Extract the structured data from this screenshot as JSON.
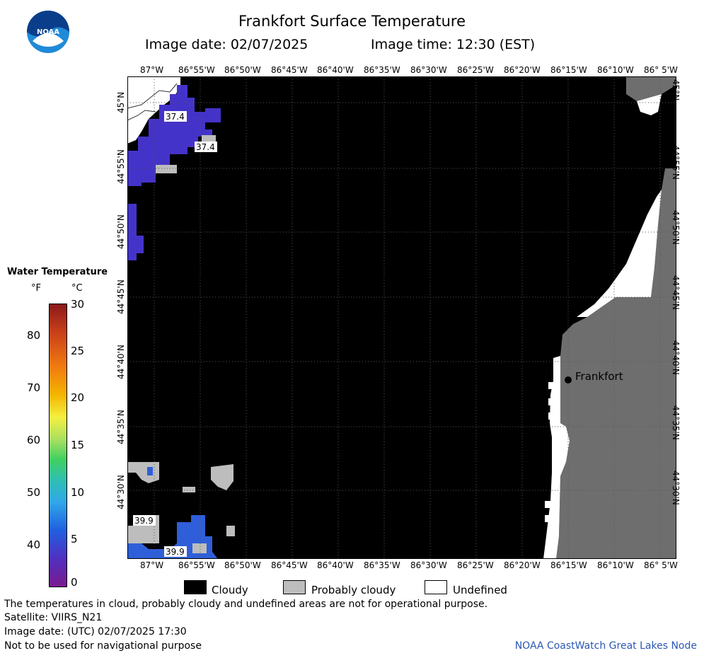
{
  "header": {
    "title": "Frankfort Surface Temperature",
    "image_date": "Image date: 02/07/2025",
    "image_time": "Image time: 12:30 (EST)"
  },
  "logo": {
    "icon": "noaa-logo",
    "text": "NOAA"
  },
  "map": {
    "lon_ticks": [
      "87°W",
      "86°55'W",
      "86°50'W",
      "86°45'W",
      "86°40'W",
      "86°35'W",
      "86°30'W",
      "86°25'W",
      "86°20'W",
      "86°15'W",
      "86°10'W",
      "86° 5'W"
    ],
    "lat_ticks": [
      "45°N",
      "44°55'N",
      "44°50'N",
      "44°45'N",
      "44°40'N",
      "44°35'N",
      "44°30'N"
    ],
    "place_label": "Frankfort",
    "temp_labels": [
      "37.4",
      "37.4",
      "39.9",
      "39.9"
    ],
    "colors": {
      "cloudy": "#000000",
      "probably_cloudy": "#bdbdbd",
      "land": "#6e6e6e",
      "undefined": "#ffffff",
      "water_cold": "#4433c8",
      "water_cool": "#2f5fd8"
    }
  },
  "colorbar": {
    "title": "Water Temperature",
    "unit_f": "°F",
    "unit_c": "°C",
    "f_ticks": [
      "80",
      "70",
      "60",
      "50",
      "40"
    ],
    "c_ticks": [
      "30",
      "25",
      "20",
      "15",
      "10",
      "5",
      "0"
    ]
  },
  "legend": {
    "cloudy": "Cloudy",
    "probably_cloudy": "Probably cloudy",
    "undefined": "Undefined"
  },
  "footer": {
    "note": "The temperatures in cloud, probably cloudy and undefined areas are not for operational purpose.",
    "satellite": "Satellite: VIIRS_N21",
    "utc_date": "Image date: (UTC) 02/07/2025  17:30",
    "nav": "Not to be used for navigational purpose",
    "credit": "NOAA CoastWatch Great Lakes Node"
  }
}
